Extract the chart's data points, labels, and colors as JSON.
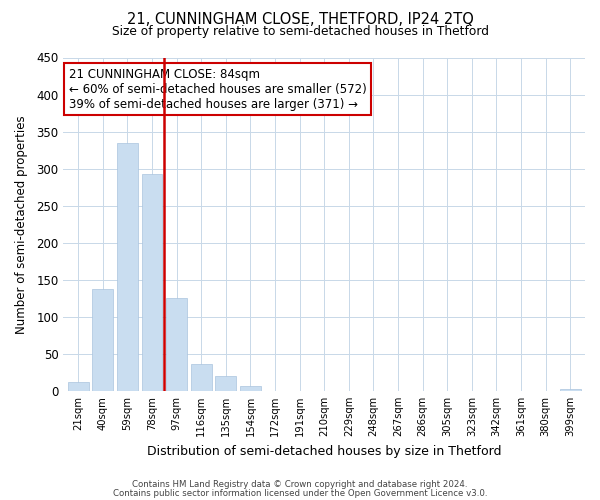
{
  "title": "21, CUNNINGHAM CLOSE, THETFORD, IP24 2TQ",
  "subtitle": "Size of property relative to semi-detached houses in Thetford",
  "xlabel": "Distribution of semi-detached houses by size in Thetford",
  "ylabel": "Number of semi-detached properties",
  "bar_labels": [
    "21sqm",
    "40sqm",
    "59sqm",
    "78sqm",
    "97sqm",
    "116sqm",
    "135sqm",
    "154sqm",
    "172sqm",
    "191sqm",
    "210sqm",
    "229sqm",
    "248sqm",
    "267sqm",
    "286sqm",
    "305sqm",
    "323sqm",
    "342sqm",
    "361sqm",
    "380sqm",
    "399sqm"
  ],
  "bar_heights": [
    12,
    138,
    335,
    293,
    125,
    36,
    20,
    7,
    0,
    0,
    0,
    0,
    0,
    0,
    0,
    0,
    0,
    0,
    0,
    0,
    3
  ],
  "bar_color": "#c9ddf0",
  "bar_edge_color": "#aac4de",
  "vline_color": "#cc0000",
  "annotation_title": "21 CUNNINGHAM CLOSE: 84sqm",
  "annotation_line1": "← 60% of semi-detached houses are smaller (572)",
  "annotation_line2": "39% of semi-detached houses are larger (371) →",
  "annotation_box_color": "#ffffff",
  "annotation_box_edge": "#cc0000",
  "ylim": [
    0,
    450
  ],
  "yticks": [
    0,
    50,
    100,
    150,
    200,
    250,
    300,
    350,
    400,
    450
  ],
  "footer1": "Contains HM Land Registry data © Crown copyright and database right 2024.",
  "footer2": "Contains public sector information licensed under the Open Government Licence v3.0.",
  "background_color": "#ffffff",
  "grid_color": "#c8d8e8"
}
